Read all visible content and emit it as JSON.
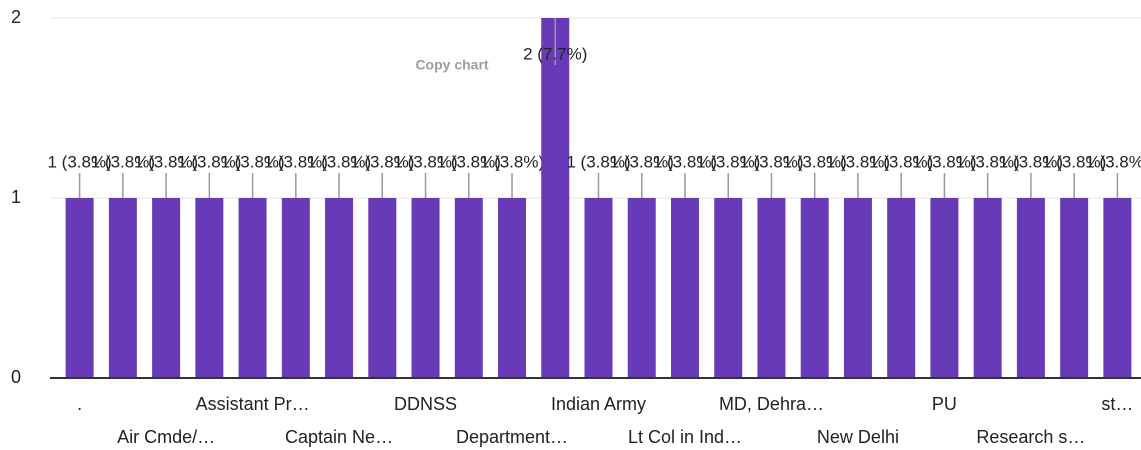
{
  "chart_data": {
    "type": "bar",
    "categories": [
      ".",
      null,
      "Air Cmde/…",
      null,
      "Assistant Pr…",
      null,
      "Captain Ne…",
      null,
      "DDNSS",
      null,
      "Department…",
      null,
      "Indian Army",
      null,
      "Lt Col in Ind…",
      null,
      "MD, Dehra…",
      null,
      "New Delhi",
      null,
      "PU",
      null,
      "Research s…",
      null,
      "st…"
    ],
    "values": [
      1,
      1,
      1,
      1,
      1,
      1,
      1,
      1,
      1,
      1,
      1,
      2,
      1,
      1,
      1,
      1,
      1,
      1,
      1,
      1,
      1,
      1,
      1,
      1,
      1
    ],
    "value_labels": [
      "1 (3.8%)",
      "1 (3.8%)",
      "1 (3.8%)",
      "1 (3.8%)",
      "1 (3.8%)",
      "1 (3.8%)",
      "1 (3.8%)",
      "1 (3.8%)",
      "1 (3.8%)",
      "1 (3.8%)",
      "1 (3.8%)",
      "2 (7.7%)",
      "1 (3.8%)",
      "1 (3.8%)",
      "1 (3.8%)",
      "1 (3.8%)",
      "1 (3.8%)",
      "1 (3.8%)",
      "1 (3.8%)",
      "1 (3.8%)",
      "1 (3.8%)",
      "1 (3.8%)",
      "1 (3.8%)",
      "1 (3.8%)",
      "1 (3.8%)"
    ],
    "color": "#673ab7",
    "ylim": [
      0,
      2
    ],
    "yticks": [
      0,
      1,
      2
    ],
    "grid": true,
    "annotation": "Copy chart"
  }
}
